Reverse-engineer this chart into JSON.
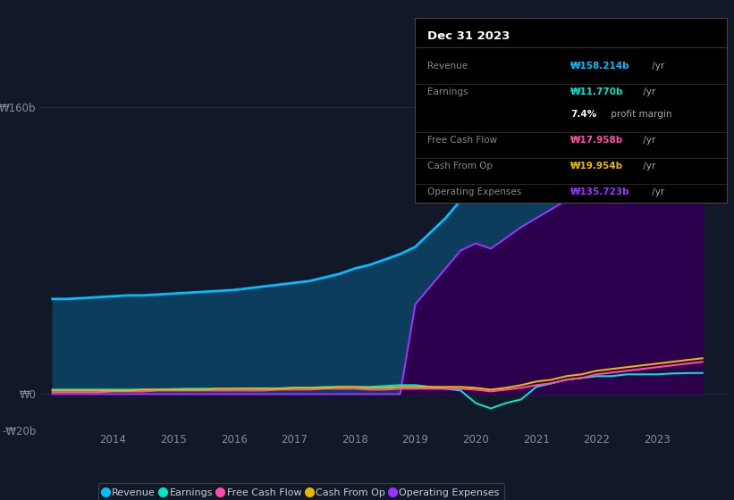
{
  "background_color": "#111827",
  "plot_bg_color": "#111827",
  "title": "Dec 31 2023",
  "info_box_bg": "#000000",
  "info_box_border": "#444444",
  "years": [
    2013.0,
    2013.25,
    2013.5,
    2013.75,
    2014.0,
    2014.25,
    2014.5,
    2014.75,
    2015.0,
    2015.25,
    2015.5,
    2015.75,
    2016.0,
    2016.25,
    2016.5,
    2016.75,
    2017.0,
    2017.25,
    2017.5,
    2017.75,
    2018.0,
    2018.25,
    2018.5,
    2018.75,
    2019.0,
    2019.25,
    2019.5,
    2019.75,
    2020.0,
    2020.25,
    2020.5,
    2020.75,
    2021.0,
    2021.25,
    2021.5,
    2021.75,
    2022.0,
    2022.25,
    2022.5,
    2022.75,
    2023.0,
    2023.25,
    2023.5,
    2023.75
  ],
  "revenue": [
    53,
    53,
    53.5,
    54,
    54.5,
    55,
    55,
    55.5,
    56,
    56.5,
    57,
    57.5,
    58,
    59,
    60,
    61,
    62,
    63,
    65,
    67,
    70,
    72,
    75,
    78,
    82,
    90,
    98,
    108,
    112,
    110,
    116,
    122,
    128,
    133,
    138,
    143,
    146,
    149,
    151,
    154,
    154,
    156,
    157.5,
    158.2
  ],
  "earnings": [
    2.5,
    2.5,
    2.5,
    2.5,
    2.5,
    2.5,
    2.5,
    2.5,
    2.8,
    3,
    3,
    3,
    3,
    3.2,
    3.2,
    3.2,
    3.5,
    3.5,
    4,
    4,
    4,
    4,
    4.5,
    5,
    5,
    4,
    3,
    2,
    -5,
    -8,
    -5,
    -3,
    4,
    6,
    8,
    9,
    10,
    10,
    11,
    11,
    11,
    11.5,
    11.7,
    11.77
  ],
  "free_cash_flow": [
    1.0,
    1.0,
    1.0,
    1.0,
    1.5,
    1.5,
    1.5,
    2,
    2,
    2,
    2,
    2,
    2,
    2,
    2,
    2.5,
    2.5,
    2.5,
    3,
    3,
    3,
    2.5,
    2.5,
    3,
    3,
    3,
    3,
    3,
    2.5,
    1.5,
    2.5,
    3.5,
    5,
    6,
    8,
    9,
    11,
    12,
    13,
    14,
    15,
    16,
    17,
    17.958
  ],
  "cash_from_op": [
    2,
    2,
    2,
    2,
    2,
    2,
    2.5,
    2.5,
    2.5,
    2.5,
    2.5,
    3,
    3,
    3,
    3,
    3,
    3.5,
    3.5,
    3.5,
    4,
    4,
    3.5,
    3.5,
    4,
    4,
    4,
    4,
    4,
    3.5,
    2.5,
    3.5,
    5,
    7,
    8,
    10,
    11,
    13,
    14,
    15,
    16,
    17,
    18,
    19,
    19.954
  ],
  "operating_expenses": [
    0,
    0,
    0,
    0,
    0,
    0,
    0,
    0,
    0,
    0,
    0,
    0,
    0,
    0,
    0,
    0,
    0,
    0,
    0,
    0,
    0,
    0,
    0,
    0,
    50,
    60,
    70,
    80,
    84,
    81,
    87,
    93,
    98,
    103,
    108,
    113,
    116,
    119,
    121,
    124,
    124,
    128,
    132,
    135.72
  ],
  "revenue_line_color": "#00bfff",
  "revenue_fill_color": "#0d3d5c",
  "earnings_line_color": "#00e5cc",
  "fcf_line_color": "#ff4da6",
  "cashop_line_color": "#e6b800",
  "opex_line_color": "#9933ff",
  "opex_fill_color": "#2d004d",
  "ylim": [
    -20,
    175
  ],
  "ytick_vals": [
    -20,
    0,
    160
  ],
  "ytick_labels": [
    "-₩20b",
    "₩0",
    "₩160b"
  ],
  "xtick_vals": [
    2014,
    2015,
    2016,
    2017,
    2018,
    2019,
    2020,
    2021,
    2022,
    2023
  ],
  "grid_color": "#2a3040",
  "tick_label_color": "#888899",
  "legend_items": [
    {
      "label": "Revenue",
      "color": "#00bfff"
    },
    {
      "label": "Earnings",
      "color": "#00e5cc"
    },
    {
      "label": "Free Cash Flow",
      "color": "#ff4da6"
    },
    {
      "label": "Cash From Op",
      "color": "#e6b800"
    },
    {
      "label": "Operating Expenses",
      "color": "#9933ff"
    }
  ],
  "infobox": {
    "title": "Dec 31 2023",
    "title_color": "#ffffff",
    "divider_color": "#444444",
    "rows": [
      {
        "label": "Revenue",
        "label_color": "#888888",
        "value": "₩158.214b",
        "value_color": "#00bfff",
        "suffix": " /yr",
        "suffix_color": "#aaaaaa"
      },
      {
        "label": "Earnings",
        "label_color": "#888888",
        "value": "₩11.770b",
        "value_color": "#00e5cc",
        "suffix": " /yr",
        "suffix_color": "#aaaaaa"
      },
      {
        "label": "",
        "label_color": "#888888",
        "value": "7.4%",
        "value_color": "#ffffff",
        "suffix": " profit margin",
        "suffix_color": "#aaaaaa"
      },
      {
        "label": "Free Cash Flow",
        "label_color": "#888888",
        "value": "₩17.958b",
        "value_color": "#ff4da6",
        "suffix": " /yr",
        "suffix_color": "#aaaaaa"
      },
      {
        "label": "Cash From Op",
        "label_color": "#888888",
        "value": "₩19.954b",
        "value_color": "#e6b800",
        "suffix": " /yr",
        "suffix_color": "#aaaaaa"
      },
      {
        "label": "Operating Expenses",
        "label_color": "#888888",
        "value": "₩135.723b",
        "value_color": "#9933ff",
        "suffix": " /yr",
        "suffix_color": "#aaaaaa"
      }
    ]
  }
}
